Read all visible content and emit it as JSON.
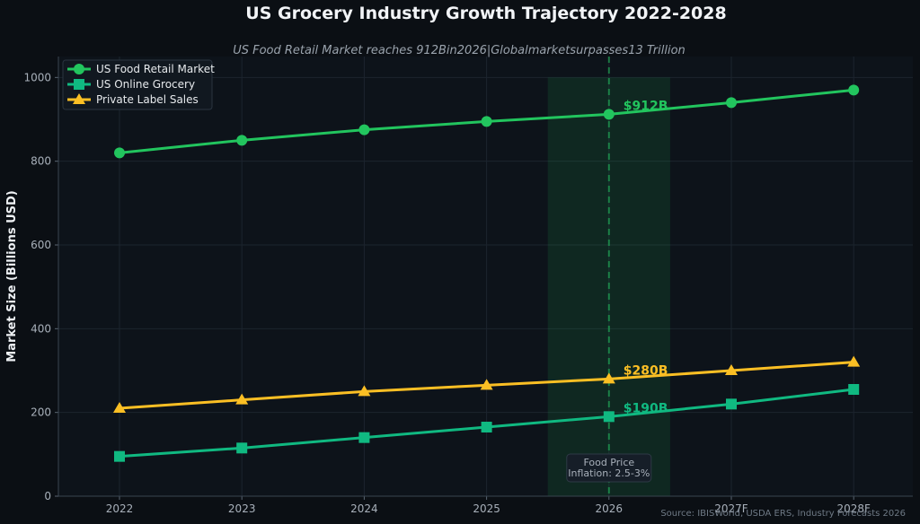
{
  "chart_data": {
    "type": "line",
    "title": "US Grocery Industry Growth Trajectory 2022-2028",
    "subtitle": "US Food Retail Market reaches 912Bin2026|Globalmarketsurpasses13 Trillion",
    "xlabel": "",
    "ylabel": "Market Size (Billions USD)",
    "categories": [
      "2022",
      "2023",
      "2024",
      "2025",
      "2026",
      "2027F",
      "2028F"
    ],
    "ylim": [
      0,
      1050
    ],
    "yticks": [
      0,
      200,
      400,
      600,
      800,
      1000
    ],
    "grid": true,
    "legend_position": "top-left",
    "highlight": {
      "category": "2026",
      "band_from": 3.5,
      "band_to": 4.5
    },
    "series": [
      {
        "name": "US Food Retail Market",
        "color": "#22c55e",
        "marker": "circle",
        "values": [
          820,
          850,
          875,
          895,
          912,
          940,
          970
        ],
        "label": "$912B"
      },
      {
        "name": "US Online Grocery",
        "color": "#10b981",
        "marker": "square",
        "values": [
          95,
          115,
          140,
          165,
          190,
          220,
          255
        ],
        "label": "$190B"
      },
      {
        "name": "Private Label Sales",
        "color": "#fbbf24",
        "marker": "triangle",
        "values": [
          210,
          230,
          250,
          265,
          280,
          300,
          320
        ],
        "label": "$280B"
      }
    ],
    "annotation": {
      "line1": "Food Price",
      "line2": "Inflation: 2.5-3%"
    },
    "source": "Source: IBISWorld, USDA ERS, Industry Forecasts 2026"
  }
}
